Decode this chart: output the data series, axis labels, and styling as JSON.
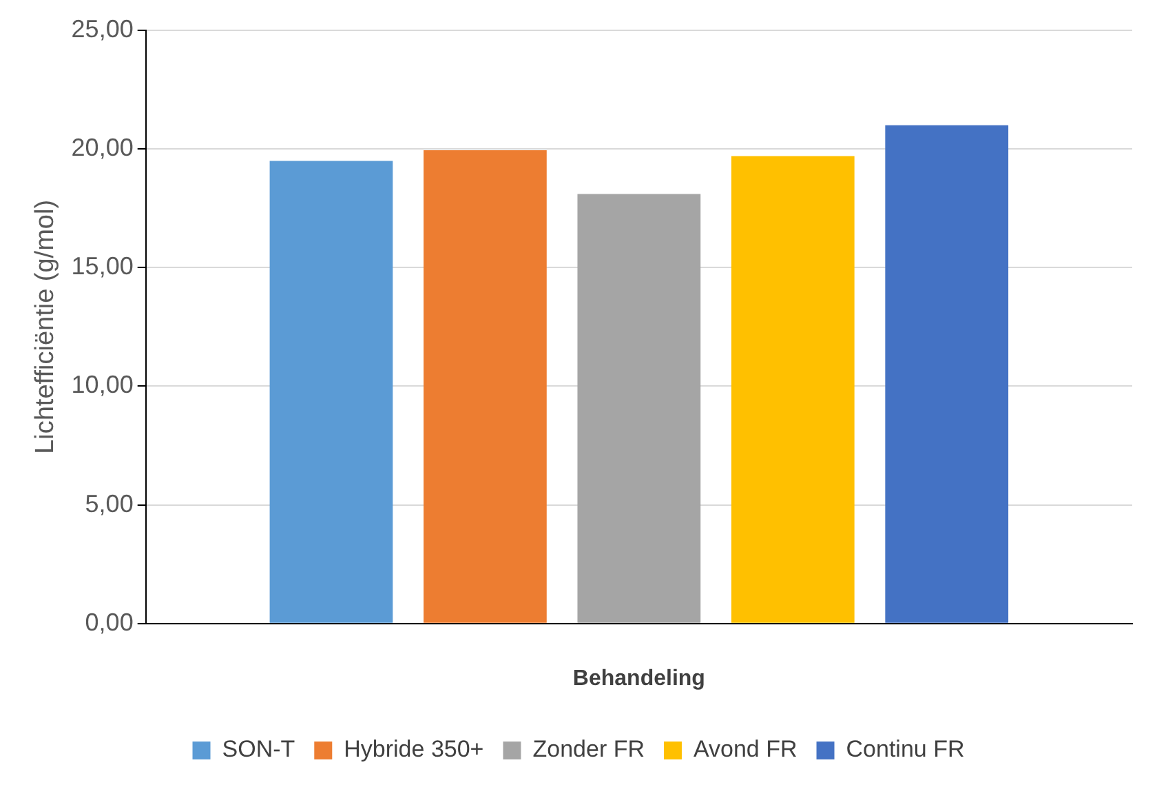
{
  "chart_data": {
    "type": "bar",
    "xlabel": "Behandeling",
    "ylabel": "Lichtefficiëntie (g/mol)",
    "categories": [
      null
    ],
    "series": [
      {
        "name": "SON-T",
        "color": "#5b9bd5",
        "values": [
          19.5
        ]
      },
      {
        "name": "Hybride 350+",
        "color": "#ed7d31",
        "values": [
          19.95
        ]
      },
      {
        "name": "Zonder FR",
        "color": "#a5a5a5",
        "values": [
          18.1
        ]
      },
      {
        "name": "Avond FR",
        "color": "#ffc000",
        "values": [
          19.7
        ]
      },
      {
        "name": "Continu FR",
        "color": "#4472c4",
        "values": [
          21.0
        ]
      }
    ],
    "ylim": [
      0,
      25
    ],
    "yticks": [
      {
        "value": 0,
        "label": "0,00"
      },
      {
        "value": 5,
        "label": "5,00"
      },
      {
        "value": 10,
        "label": "10,00"
      },
      {
        "value": 15,
        "label": "15,00"
      },
      {
        "value": 20,
        "label": "20,00"
      },
      {
        "value": 25,
        "label": "25,00"
      }
    ],
    "grid": "y",
    "legend": "bottom"
  }
}
